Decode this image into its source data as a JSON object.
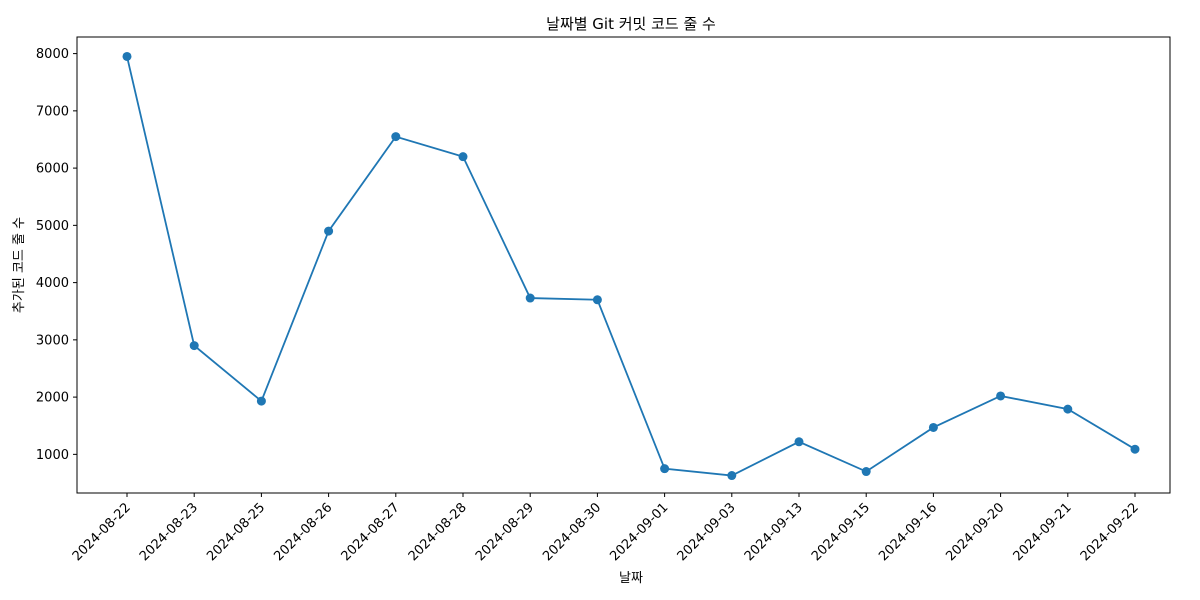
{
  "chart_data": {
    "type": "line",
    "title": "날짜별 Git 커밋 코드 줄 수",
    "xlabel": "날짜",
    "ylabel": "추가된 코드 줄 수",
    "categories": [
      "2024-08-22",
      "2024-08-23",
      "2024-08-25",
      "2024-08-26",
      "2024-08-27",
      "2024-08-28",
      "2024-08-29",
      "2024-08-30",
      "2024-09-01",
      "2024-09-03",
      "2024-09-13",
      "2024-09-15",
      "2024-09-16",
      "2024-09-20",
      "2024-09-21",
      "2024-09-22"
    ],
    "series": [
      {
        "values": [
          7950,
          2900,
          1930,
          4900,
          6550,
          6200,
          3730,
          3700,
          750,
          630,
          1220,
          700,
          1470,
          2020,
          1790,
          1090
        ]
      }
    ],
    "yticks": [
      1000,
      2000,
      3000,
      4000,
      5000,
      6000,
      7000,
      8000
    ],
    "ylim": [
      325,
      8290
    ],
    "grid": false,
    "legend": "none",
    "color": "#1f77b4"
  }
}
